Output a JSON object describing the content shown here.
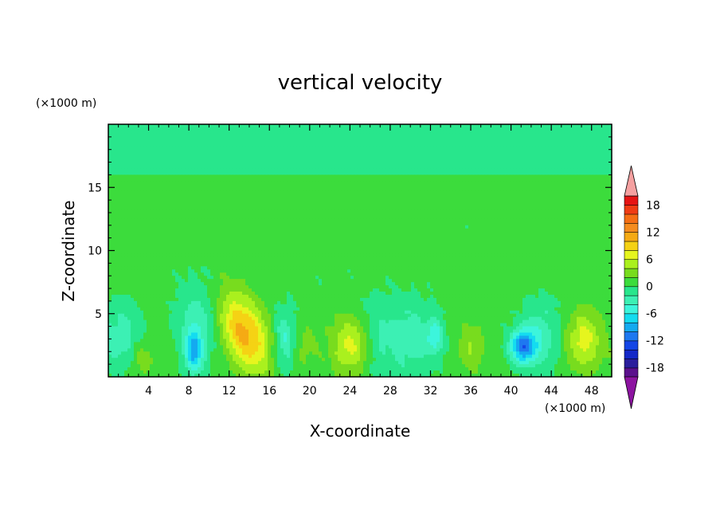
{
  "chart_data": {
    "type": "heatmap",
    "title": "vertical velocity",
    "xlabel": "X-coordinate",
    "ylabel": "Z-coordinate",
    "x_unit": "(×1000 m)",
    "y_unit": "(×1000 m)",
    "xlim": [
      0,
      50
    ],
    "ylim": [
      0,
      20
    ],
    "x_ticks": [
      4,
      8,
      12,
      16,
      20,
      24,
      28,
      32,
      36,
      40,
      44,
      48
    ],
    "y_ticks": [
      5,
      10,
      15
    ],
    "colorbar": {
      "levels": [
        -20,
        -18,
        -16,
        -14,
        -12,
        -10,
        -8,
        -6,
        -4,
        -2,
        0,
        2,
        4,
        6,
        8,
        10,
        12,
        14,
        16,
        18,
        20
      ],
      "tick_labels": [
        "18",
        "12",
        "6",
        "0",
        "-6",
        "-12",
        "-18"
      ],
      "tick_values": [
        18,
        12,
        6,
        0,
        -6,
        -12,
        -18
      ],
      "colors": [
        "#5b108c",
        "#2a1e9c",
        "#1428c8",
        "#1446e6",
        "#1e78f0",
        "#14aaf0",
        "#14dcf0",
        "#3cf5dc",
        "#3cf0b4",
        "#28e68c",
        "#3cdc3c",
        "#78dc1e",
        "#aaf01e",
        "#e6f51e",
        "#f5d214",
        "#f5aa14",
        "#f58c1e",
        "#f56e14",
        "#f03c14",
        "#e61414"
      ],
      "under_color": "#8c14a0",
      "over_color": "#f5a0a0"
    },
    "features": [
      {
        "x": 13.5,
        "z": 3.5,
        "peak": 10,
        "sx": 1.6,
        "sz": 2.2,
        "tilt": -0.35
      },
      {
        "x": 24.2,
        "z": 2.5,
        "peak": 6,
        "sx": 1.4,
        "sz": 1.5,
        "tilt": 0
      },
      {
        "x": 47.2,
        "z": 2.9,
        "peak": 6,
        "sx": 1.3,
        "sz": 1.6,
        "tilt": 0
      },
      {
        "x": 36.0,
        "z": 2.3,
        "peak": 3,
        "sx": 0.9,
        "sz": 1.4,
        "tilt": 0
      },
      {
        "x": 3.4,
        "z": 1.5,
        "peak": 3,
        "sx": 0.9,
        "sz": 1.0,
        "tilt": 0
      },
      {
        "x": 19.5,
        "z": 2.4,
        "peak": 2,
        "sx": 0.8,
        "sz": 1.2,
        "tilt": 0
      },
      {
        "x": 41.2,
        "z": 2.4,
        "peak": -11,
        "sx": 0.9,
        "sz": 0.9,
        "tilt": 0
      },
      {
        "x": 8.5,
        "z": 2.0,
        "peak": -8,
        "sx": 0.6,
        "sz": 1.2,
        "tilt": 0
      },
      {
        "x": 17.5,
        "z": 2.9,
        "peak": -5,
        "sx": 0.8,
        "sz": 1.8,
        "tilt": 0
      },
      {
        "x": 9.0,
        "z": 4.3,
        "peak": -4,
        "sx": 1.6,
        "sz": 2.4,
        "tilt": 0
      },
      {
        "x": 1.2,
        "z": 3.0,
        "peak": -4,
        "sx": 1.6,
        "sz": 2.0,
        "tilt": 0
      },
      {
        "x": 30.0,
        "z": 3.0,
        "peak": -4,
        "sx": 1.8,
        "sz": 2.2,
        "tilt": 0
      },
      {
        "x": 32.5,
        "z": 3.2,
        "peak": -5,
        "sx": 0.6,
        "sz": 1.0,
        "tilt": 0
      },
      {
        "x": 43.0,
        "z": 3.2,
        "peak": -4,
        "sx": 1.6,
        "sz": 2.0,
        "tilt": 0
      },
      {
        "x": 26.5,
        "z": 3.2,
        "peak": -3,
        "sx": 1.2,
        "sz": 2.2,
        "tilt": 0
      }
    ]
  }
}
